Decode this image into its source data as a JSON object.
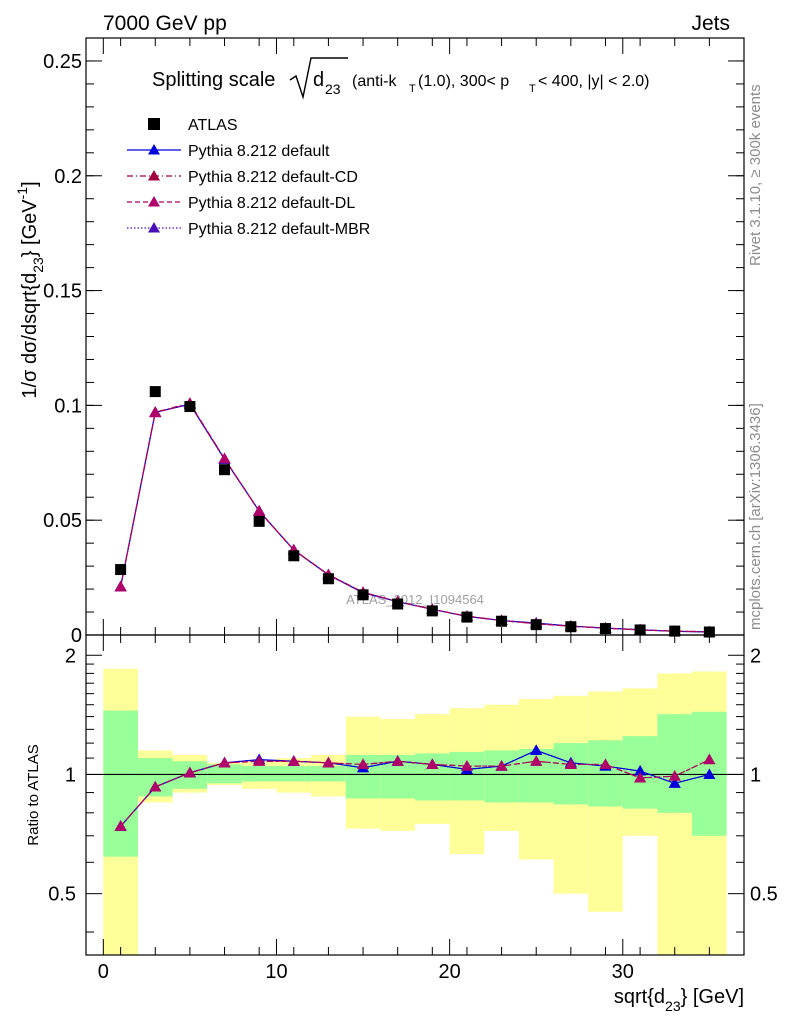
{
  "header": {
    "left": "7000 GeV pp",
    "right": "Jets"
  },
  "side_text": {
    "rivet": "Rivet 3.1.10, ≥ 300k events",
    "mcplots": "mcplots.cern.ch [arXiv:1306.3436]"
  },
  "watermark": "ATLAS_2012_I1094564",
  "title_parts": {
    "prefix": "Splitting scale",
    "sqrt_arg": "d",
    "sqrt_sub": "23",
    "cond_a": "(anti-k",
    "cond_a_sub": "T",
    "cond_b": "(1.0), 300< p",
    "cond_b_sub": "T",
    "cond_c": " < 400, |y| < 2.0)"
  },
  "ylabel_parts": {
    "main": "1/σ dσ/dsqrt{d",
    "sub": "23",
    "mid": "} [GeV",
    "sup": "-1",
    "end": "]"
  },
  "xlabel_parts": {
    "main": "sqrt{d",
    "sub": "23",
    "end": "} [GeV]"
  },
  "ratio_ylabel": "Ratio to ATLAS",
  "legend": [
    {
      "label": "ATLAS",
      "marker": "square",
      "color": "#000000",
      "line": "none"
    },
    {
      "label": "Pythia 8.212 default",
      "marker": "triangle",
      "color": "#0000dd",
      "line": "solid"
    },
    {
      "label": "Pythia 8.212 default-CD",
      "marker": "triangle",
      "color": "#a00040",
      "line": "dashdot"
    },
    {
      "label": "Pythia 8.212 default-DL",
      "marker": "triangle",
      "color": "#b0006a",
      "line": "dashed"
    },
    {
      "label": "Pythia 8.212 default-MBR",
      "marker": "triangle",
      "color": "#4a0fb8",
      "line": "dotted"
    }
  ],
  "chart_data": [
    {
      "type": "scatter",
      "panel": "main",
      "title": "Splitting scale sqrt(d23) (anti-kT(1.0), 300< pT < 400, |y| < 2.0)",
      "xlabel": "sqrt{d23} [GeV]",
      "ylabel": "1/σ dσ/dsqrt{d23} [GeV-1]",
      "xlim": [
        -1,
        37
      ],
      "ylim": [
        0,
        0.26
      ],
      "yticks": [
        0,
        0.05,
        0.1,
        0.15,
        0.2,
        0.25
      ],
      "ytick_labels": [
        "0",
        "0.05",
        "0.1",
        "0.15",
        "0.2",
        "0.25"
      ],
      "x": [
        1,
        3,
        5,
        7,
        9,
        11,
        13,
        15,
        17,
        19,
        21,
        23,
        25,
        27,
        29,
        31,
        33,
        35
      ],
      "series": [
        {
          "name": "ATLAS",
          "values": [
            0.0285,
            0.106,
            0.0995,
            0.072,
            0.0495,
            0.0345,
            0.0245,
            0.0175,
            0.0135,
            0.0105,
            0.0078,
            0.006,
            0.0045,
            0.0036,
            0.0028,
            0.0022,
            0.0017,
            0.0013
          ]
        },
        {
          "name": "Pythia 8.212 default",
          "values": [
            0.021,
            0.097,
            0.1005,
            0.0765,
            0.054,
            0.037,
            0.0262,
            0.0184,
            0.0145,
            0.0112,
            0.0081,
            0.0063,
            0.0052,
            0.0039,
            0.003,
            0.0023,
            0.0016,
            0.0013
          ]
        },
        {
          "name": "Pythia 8.212 default-CD",
          "values": [
            0.021,
            0.097,
            0.101,
            0.0768,
            0.054,
            0.037,
            0.0263,
            0.0186,
            0.0146,
            0.0112,
            0.0082,
            0.0063,
            0.0049,
            0.0038,
            0.003,
            0.0022,
            0.0017,
            0.0014
          ]
        },
        {
          "name": "Pythia 8.212 default-DL",
          "values": [
            0.021,
            0.0968,
            0.1008,
            0.0768,
            0.0538,
            0.0371,
            0.0263,
            0.0186,
            0.0146,
            0.0112,
            0.0082,
            0.0063,
            0.0049,
            0.0038,
            0.003,
            0.0022,
            0.0017,
            0.0014
          ]
        },
        {
          "name": "Pythia 8.212 default-MBR",
          "values": [
            0.021,
            0.097,
            0.1005,
            0.0766,
            0.054,
            0.037,
            0.0262,
            0.0184,
            0.0145,
            0.0112,
            0.0081,
            0.0063,
            0.0052,
            0.0039,
            0.003,
            0.0023,
            0.0016,
            0.0013
          ]
        }
      ]
    },
    {
      "type": "scatter",
      "panel": "ratio",
      "xlabel": "sqrt{d23} [GeV]",
      "ylabel": "Ratio to ATLAS",
      "xlim": [
        -1,
        37
      ],
      "ylim": [
        0.35,
        2.25
      ],
      "log_y": true,
      "xticks": [
        0,
        10,
        20,
        30
      ],
      "xtick_labels": [
        "0",
        "10",
        "20",
        "30"
      ],
      "yticks": [
        0.5,
        1,
        2
      ],
      "ytick_labels": [
        "0.5",
        "1",
        "2"
      ],
      "bin_edges": [
        0,
        2,
        4,
        6,
        8,
        10,
        12,
        14,
        16,
        18,
        20,
        22,
        24,
        26,
        28,
        30,
        32,
        34,
        36
      ],
      "band_stat": {
        "lo": [
          0.62,
          0.88,
          0.92,
          0.95,
          0.96,
          0.96,
          0.96,
          0.87,
          0.87,
          0.86,
          0.86,
          0.85,
          0.85,
          0.84,
          0.83,
          0.82,
          0.8,
          0.7
        ],
        "hi": [
          1.45,
          1.1,
          1.08,
          1.06,
          1.05,
          1.05,
          1.05,
          1.12,
          1.12,
          1.13,
          1.14,
          1.15,
          1.16,
          1.2,
          1.22,
          1.25,
          1.42,
          1.44
        ]
      },
      "band_total": {
        "lo": [
          0.35,
          0.85,
          0.9,
          0.94,
          0.92,
          0.9,
          0.88,
          0.73,
          0.72,
          0.75,
          0.63,
          0.72,
          0.61,
          0.5,
          0.45,
          0.7,
          0.35,
          0.35
        ],
        "hi": [
          1.85,
          1.15,
          1.12,
          1.07,
          1.08,
          1.1,
          1.12,
          1.4,
          1.38,
          1.42,
          1.47,
          1.5,
          1.55,
          1.58,
          1.62,
          1.65,
          1.8,
          1.82
        ]
      },
      "x": [
        1,
        3,
        5,
        7,
        9,
        11,
        13,
        15,
        17,
        19,
        21,
        23,
        25,
        27,
        29,
        31,
        33,
        35
      ],
      "series": [
        {
          "name": "Pythia 8.212 default",
          "values": [
            0.74,
            0.93,
            1.01,
            1.07,
            1.09,
            1.08,
            1.07,
            1.04,
            1.08,
            1.06,
            1.03,
            1.05,
            1.15,
            1.07,
            1.05,
            1.02,
            0.95,
            1.0
          ]
        },
        {
          "name": "Pythia 8.212 default-CD",
          "values": [
            0.74,
            0.93,
            1.01,
            1.07,
            1.08,
            1.08,
            1.07,
            1.06,
            1.08,
            1.06,
            1.05,
            1.05,
            1.08,
            1.06,
            1.06,
            0.98,
            0.99,
            1.09
          ]
        },
        {
          "name": "Pythia 8.212 default-DL",
          "values": [
            0.74,
            0.93,
            1.01,
            1.07,
            1.08,
            1.08,
            1.07,
            1.06,
            1.08,
            1.06,
            1.05,
            1.05,
            1.08,
            1.06,
            1.06,
            0.98,
            0.99,
            1.09
          ]
        },
        {
          "name": "Pythia 8.212 default-MBR",
          "values": [
            0.74,
            0.93,
            1.01,
            1.07,
            1.09,
            1.08,
            1.07,
            1.04,
            1.08,
            1.06,
            1.03,
            1.05,
            1.15,
            1.07,
            1.05,
            1.02,
            0.95,
            1.0
          ]
        }
      ]
    }
  ]
}
